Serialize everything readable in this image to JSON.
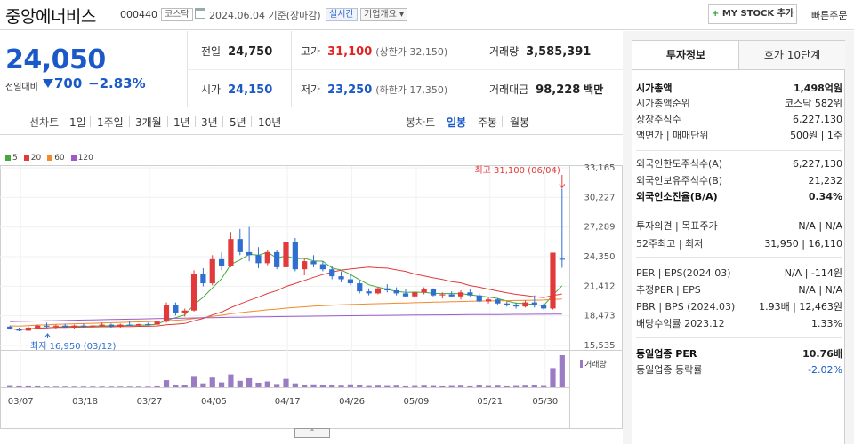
{
  "header": {
    "name": "중앙에너비스",
    "code": "000440",
    "market_badge": "코스닥",
    "date": "2024.06.04 기준(장마감)",
    "realtime_badge": "실시간",
    "company_badge": "기업개요 ▾",
    "mystock_label": "MY STOCK 추가",
    "mystock_plus": "+",
    "quick_order": "빠른주문"
  },
  "quote": {
    "price": "24,050",
    "change_label": "전일대비",
    "change": "700",
    "change_pct": "−2.83%",
    "prev_label": "전일",
    "prev": "24,750",
    "high_label": "고가",
    "high": "31,100",
    "upper_limit": "(상한가 32,150)",
    "volume_label": "거래량",
    "volume": "3,585,391",
    "open_label": "시가",
    "open": "24,150",
    "low_label": "저가",
    "low": "23,250",
    "lower_limit": "(하한가 17,350)",
    "amount_label": "거래대금",
    "amount": "98,228",
    "amount_unit": "백만"
  },
  "toolbar": {
    "line_chart_label": "선차트",
    "periods": [
      "1일",
      "1주일",
      "3개월",
      "1년",
      "3년",
      "5년",
      "10년"
    ],
    "candle_label": "봉차트",
    "candle_types": [
      "일봉",
      "주봉",
      "월봉"
    ],
    "active_candle": "일봉"
  },
  "chart_data": {
    "type": "candlestick",
    "legend": [
      {
        "label": "5",
        "color": "#44a83b"
      },
      {
        "label": "20",
        "color": "#e23a3a"
      },
      {
        "label": "60",
        "color": "#f08a2a"
      },
      {
        "label": "120",
        "color": "#9a5bc9"
      }
    ],
    "y_ticks": [
      "33,165",
      "30,227",
      "27,289",
      "24,350",
      "21,412",
      "18,473",
      "15,535"
    ],
    "x_ticks": [
      "03/07",
      "03/18",
      "03/27",
      "04/05",
      "04/17",
      "04/26",
      "05/09",
      "05/21",
      "05/30"
    ],
    "ylim": [
      15535,
      33165
    ],
    "max_annotation": "최고 31,100 (06/04)",
    "min_annotation": "최저 16,950 (03/12)",
    "volume_label": "거래량",
    "candles": [
      [
        17400,
        17500,
        17100,
        17200
      ],
      [
        17200,
        17300,
        16950,
        17000
      ],
      [
        17000,
        17400,
        16950,
        17300
      ],
      [
        17300,
        17600,
        17200,
        17500
      ],
      [
        17500,
        17800,
        17300,
        17400
      ],
      [
        17400,
        17600,
        17200,
        17500
      ],
      [
        17500,
        17700,
        17300,
        17350
      ],
      [
        17350,
        17600,
        17200,
        17500
      ],
      [
        17500,
        17700,
        17300,
        17400
      ],
      [
        17400,
        17600,
        17300,
        17500
      ],
      [
        17500,
        17800,
        17400,
        17600
      ],
      [
        17600,
        17700,
        17300,
        17400
      ],
      [
        17400,
        17700,
        17300,
        17600
      ],
      [
        17600,
        17900,
        17500,
        17500
      ],
      [
        17500,
        17700,
        17400,
        17650
      ],
      [
        17650,
        17800,
        17500,
        17600
      ],
      [
        17600,
        18000,
        17500,
        17900
      ],
      [
        17900,
        19800,
        17800,
        19500
      ],
      [
        19500,
        19800,
        18500,
        18800
      ],
      [
        18800,
        19200,
        18400,
        19000
      ],
      [
        19000,
        23000,
        18900,
        22600
      ],
      [
        22600,
        23200,
        21400,
        21700
      ],
      [
        21700,
        24500,
        21500,
        24100
      ],
      [
        24100,
        24800,
        23000,
        23400
      ],
      [
        23400,
        26800,
        23300,
        26100
      ],
      [
        26100,
        27100,
        24500,
        24800
      ],
      [
        24800,
        27300,
        23900,
        24500
      ],
      [
        24500,
        25300,
        23200,
        23700
      ],
      [
        23700,
        25000,
        23500,
        24800
      ],
      [
        24800,
        25000,
        23100,
        23300
      ],
      [
        23300,
        26300,
        23200,
        25800
      ],
      [
        25800,
        26200,
        22900,
        23100
      ],
      [
        23100,
        24200,
        22500,
        23900
      ],
      [
        23900,
        24500,
        23300,
        23600
      ],
      [
        23600,
        23900,
        22900,
        23100
      ],
      [
        23100,
        23400,
        22100,
        22400
      ],
      [
        22400,
        22900,
        21800,
        22100
      ],
      [
        22100,
        22600,
        21500,
        21700
      ],
      [
        21700,
        21900,
        20700,
        20900
      ],
      [
        20900,
        21200,
        20500,
        20700
      ],
      [
        20700,
        21300,
        20600,
        21200
      ],
      [
        21200,
        21600,
        20800,
        21000
      ],
      [
        21000,
        21300,
        20500,
        20700
      ],
      [
        20700,
        21100,
        20300,
        20400
      ],
      [
        20400,
        20900,
        20200,
        20800
      ],
      [
        20800,
        21300,
        20600,
        21100
      ],
      [
        21100,
        21200,
        20400,
        20500
      ],
      [
        20500,
        20800,
        20200,
        20600
      ],
      [
        20600,
        20900,
        20300,
        20400
      ],
      [
        20400,
        21000,
        20100,
        20800
      ],
      [
        20800,
        21100,
        20400,
        20500
      ],
      [
        20500,
        20700,
        19800,
        19900
      ],
      [
        19900,
        20300,
        19700,
        20100
      ],
      [
        20100,
        20200,
        19600,
        19700
      ],
      [
        19700,
        19900,
        19400,
        19500
      ],
      [
        19500,
        19800,
        19200,
        19400
      ],
      [
        19400,
        20000,
        19300,
        19800
      ],
      [
        19800,
        20500,
        19300,
        19500
      ],
      [
        19500,
        19700,
        19100,
        19200
      ],
      [
        19200,
        24750,
        19100,
        24750
      ],
      [
        24150,
        31100,
        23250,
        24050
      ]
    ],
    "volumes": [
      4,
      3,
      3,
      3,
      2,
      2,
      2,
      2,
      2,
      2,
      2,
      2,
      2,
      2,
      2,
      2,
      3,
      22,
      8,
      6,
      35,
      12,
      30,
      15,
      40,
      20,
      28,
      14,
      18,
      10,
      26,
      12,
      8,
      9,
      7,
      6,
      5,
      9,
      7,
      4,
      5,
      4,
      5,
      3,
      4,
      5,
      4,
      3,
      4,
      5,
      3,
      6,
      4,
      5,
      3,
      4,
      5,
      6,
      4,
      60,
      100
    ]
  },
  "panel": {
    "tabs": [
      "투자정보",
      "호가 10단계"
    ],
    "rows": [
      {
        "k": "시가총액",
        "v": "1,498억원",
        "bold": true
      },
      {
        "k": "시가총액순위",
        "v": "코스닥 582위"
      },
      {
        "k": "상장주식수",
        "v": "6,227,130"
      },
      {
        "k": "액면가 | 매매단위",
        "v": "500원 | 1주"
      },
      {
        "k": "외국인한도주식수(A)",
        "v": "6,227,130"
      },
      {
        "k": "외국인보유주식수(B)",
        "v": "21,232"
      },
      {
        "k": "외국인소진율(B/A)",
        "v": "0.34%",
        "bold": true
      },
      {
        "k": "투자의견 | 목표주가",
        "v": "N/A | N/A"
      },
      {
        "k": "52주최고 | 최저",
        "v": "31,950 | 16,110"
      },
      {
        "k": "PER | EPS(2024.03)",
        "v": "N/A | -114원"
      },
      {
        "k": "추정PER | EPS",
        "v": "N/A | N/A"
      },
      {
        "k": "PBR | BPS (2024.03)",
        "v": "1.93배 | 12,463원"
      },
      {
        "k": "배당수익률 2023.12",
        "v": "1.33%"
      },
      {
        "k": "동일업종 PER",
        "v": "10.76배",
        "bold": true
      },
      {
        "k": "동일업종 등락률",
        "v": "-2.02%",
        "blue": true
      }
    ]
  },
  "bottom_tab": "⌃"
}
